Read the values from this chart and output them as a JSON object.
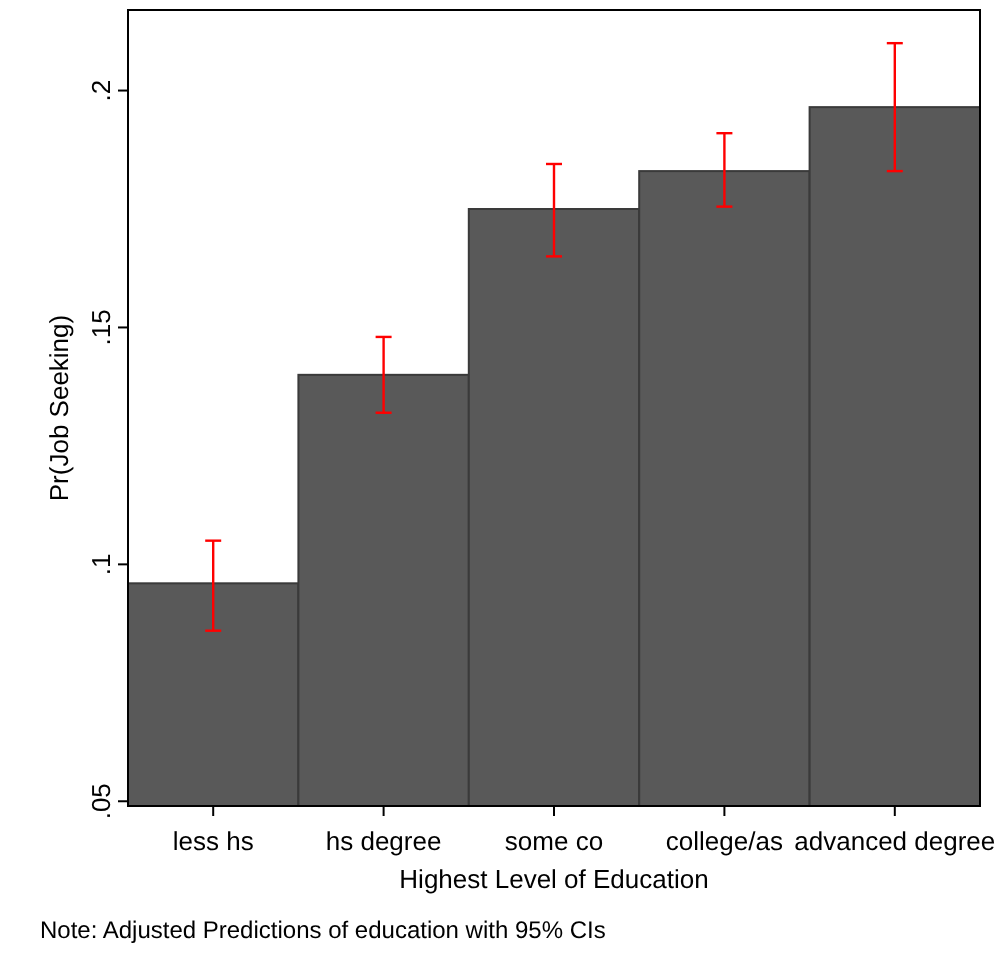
{
  "chart_data": {
    "type": "bar",
    "xlabel": "Highest Level of Education",
    "ylabel": "Pr(Job Seeking)",
    "categories": [
      "less hs",
      "hs degree",
      "some co",
      "college/as",
      "advanced degree"
    ],
    "values": [
      0.096,
      0.14,
      0.175,
      0.183,
      0.1965
    ],
    "color": "#595959",
    "errors": [
      [
        0.086,
        0.105
      ],
      [
        0.132,
        0.148
      ],
      [
        0.165,
        0.1845
      ],
      [
        0.1755,
        0.191
      ],
      [
        0.183,
        0.21
      ]
    ],
    "ylim": [
      0.049,
      0.217
    ],
    "yticks": [
      {
        "value": 0.05,
        "label": ".05"
      },
      {
        "value": 0.1,
        "label": ".1"
      },
      {
        "value": 0.15,
        "label": ".15"
      },
      {
        "value": 0.2,
        "label": ".2"
      }
    ],
    "grid": false,
    "annotations": [
      "Note: Adjusted Predictions of education with 95% CIs"
    ]
  }
}
